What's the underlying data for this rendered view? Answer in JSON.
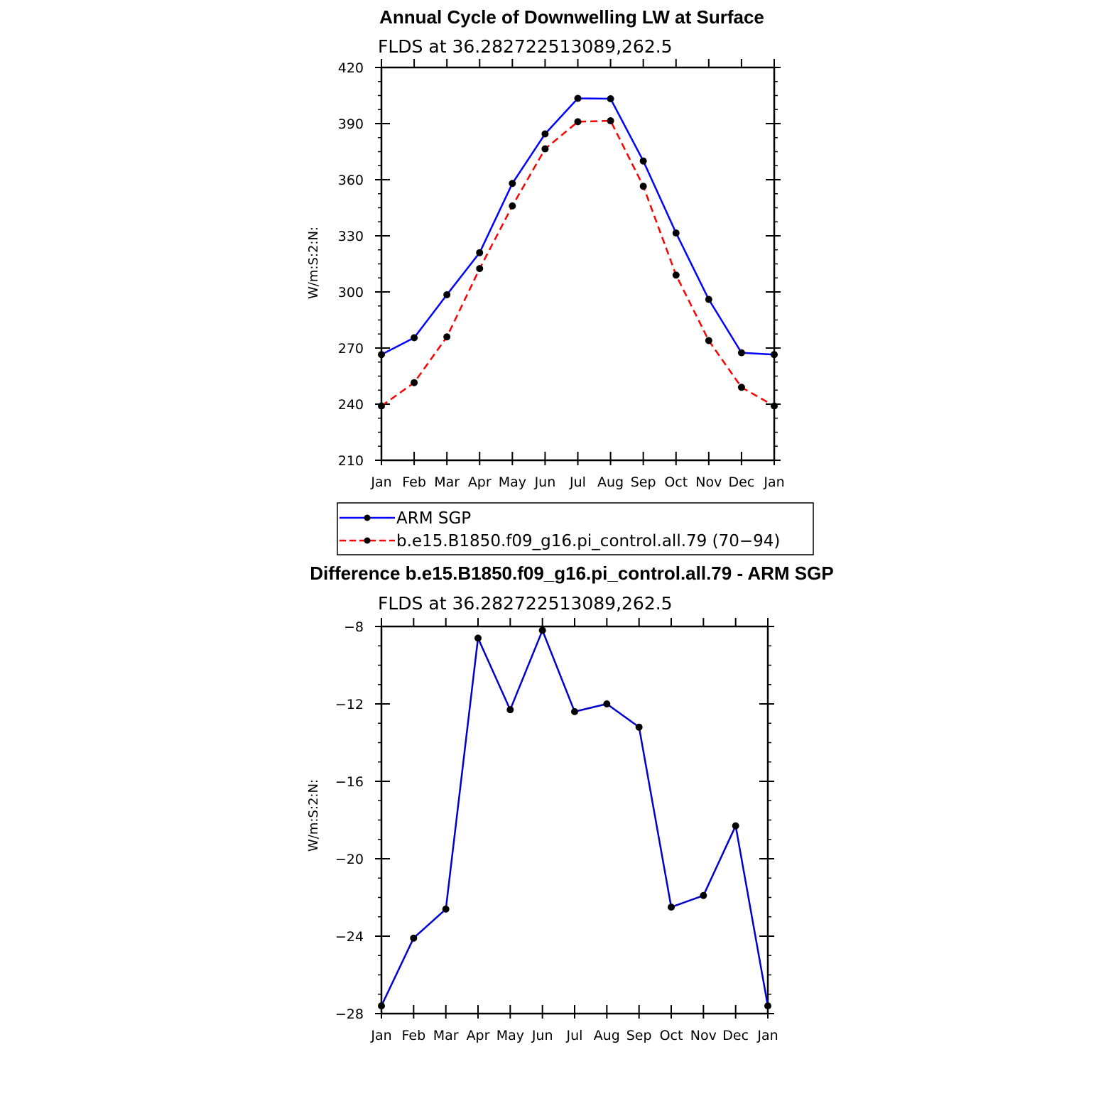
{
  "chart_data": [
    {
      "type": "line",
      "title": "Annual Cycle of Downwelling LW at Surface",
      "subtitle": "FLDS at 36.282722513089,262.5",
      "ylabel": "W/m:S:2:N:",
      "xlabel": "",
      "categories": [
        "Jan",
        "Feb",
        "Mar",
        "Apr",
        "May",
        "Jun",
        "Jul",
        "Aug",
        "Sep",
        "Oct",
        "Nov",
        "Dec",
        "Jan"
      ],
      "ylim": [
        210,
        420
      ],
      "yticks": [
        210,
        240,
        270,
        300,
        330,
        360,
        390,
        420
      ],
      "yticks_display": [
        "210",
        "240",
        "270",
        "300",
        "330",
        "360",
        "390",
        "420"
      ],
      "grid": false,
      "legend_placement": "below",
      "series": [
        {
          "name": "ARM SGP",
          "color": "#0000ff",
          "dash": "solid",
          "values": [
            266.5,
            275.5,
            298.5,
            321.0,
            358.0,
            384.5,
            403.5,
            403.3,
            370.0,
            331.5,
            296.0,
            267.5,
            266.5
          ]
        },
        {
          "name": "b.e15.B1850.f09_g16.pi_control.all.79 (70−94)",
          "color": "#ff0000",
          "dash": "dashed",
          "values": [
            239.0,
            251.5,
            276.0,
            312.5,
            346.0,
            376.5,
            391.0,
            391.5,
            356.5,
            309.0,
            274.0,
            249.0,
            239.0
          ]
        }
      ]
    },
    {
      "type": "line",
      "title": "Difference b.e15.B1850.f09_g16.pi_control.all.79 - ARM SGP",
      "subtitle": "FLDS at 36.282722513089,262.5",
      "ylabel": "W/m:S:2:N:",
      "xlabel": "",
      "categories": [
        "Jan",
        "Feb",
        "Mar",
        "Apr",
        "May",
        "Jun",
        "Jul",
        "Aug",
        "Sep",
        "Oct",
        "Nov",
        "Dec",
        "Jan"
      ],
      "ylim": [
        -28,
        -8
      ],
      "yticks": [
        -28,
        -24,
        -20,
        -16,
        -12,
        -8
      ],
      "yticks_display": [
        "−28",
        "−24",
        "−20",
        "−16",
        "−12",
        "−8"
      ],
      "grid": false,
      "series": [
        {
          "name": "",
          "color": "#0000cc",
          "dash": "solid",
          "values": [
            -27.6,
            -24.1,
            -22.6,
            -8.6,
            -12.3,
            -8.2,
            -12.4,
            -12.0,
            -13.2,
            -22.5,
            -21.9,
            -18.3,
            -27.6
          ]
        }
      ]
    }
  ]
}
